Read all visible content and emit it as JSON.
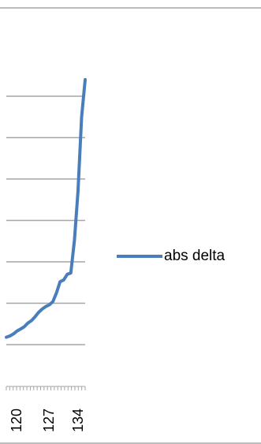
{
  "chart_data": {
    "type": "line",
    "title": "",
    "xlabel": "",
    "ylabel": "",
    "x": [
      114,
      115,
      116,
      117,
      118,
      119,
      120,
      121,
      122,
      123,
      124,
      125,
      126,
      127,
      128,
      129,
      130,
      131,
      132,
      133,
      134,
      135,
      136
    ],
    "series": [
      {
        "name": "abs delta",
        "color": "#4a7ebb",
        "values": [
          0.18,
          0.21,
          0.26,
          0.33,
          0.38,
          0.43,
          0.52,
          0.58,
          0.67,
          0.78,
          0.86,
          0.92,
          0.96,
          1.04,
          1.25,
          1.52,
          1.56,
          1.7,
          1.73,
          2.52,
          3.7,
          5.5,
          6.4
        ]
      }
    ],
    "ylim": [
      0,
      8
    ],
    "gridlines": true,
    "x_tick_labels": [
      "120",
      "127",
      "134"
    ],
    "legend_position": "right"
  },
  "colors": {
    "series": "#4a7ebb",
    "grid": "#a6a6a6",
    "frame": "#a6a6a6",
    "axis": "#a6a6a6"
  }
}
